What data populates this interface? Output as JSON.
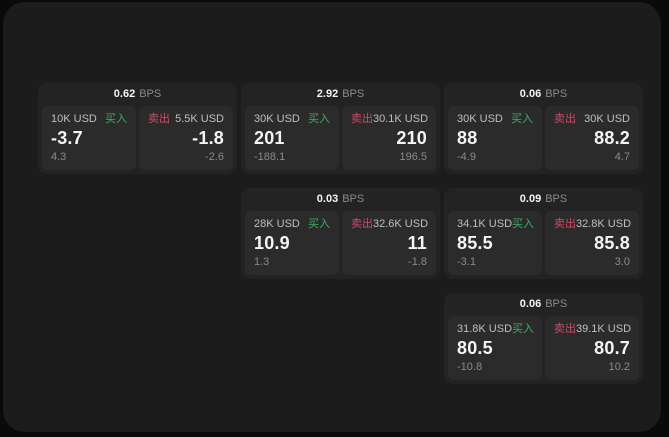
{
  "labels": {
    "bps_unit": "BPS",
    "buy": "买入",
    "sell": "卖出"
  },
  "colors": {
    "background": "#0a0a0a",
    "surface": "#1c1c1d",
    "card": "#232324",
    "panel": "#2b2b2c",
    "buy_green": "#3fae5e",
    "sell_red": "#cc4b68",
    "text_primary": "#f5f5f5",
    "text_secondary": "#bfbfbf",
    "text_muted": "#8a8a8a"
  },
  "cards": [
    {
      "row": 1,
      "col": 1,
      "bps": "0.62",
      "buy": {
        "size": "10K USD",
        "price": "-3.7",
        "delta": "4.3"
      },
      "sell": {
        "size": "5.5K USD",
        "price": "-1.8",
        "delta": "-2.6"
      }
    },
    {
      "row": 1,
      "col": 2,
      "bps": "2.92",
      "buy": {
        "size": "30K USD",
        "price": "201",
        "delta": "-188.1"
      },
      "sell": {
        "size": "30.1K USD",
        "price": "210",
        "delta": "196.5"
      }
    },
    {
      "row": 1,
      "col": 3,
      "bps": "0.06",
      "buy": {
        "size": "30K USD",
        "price": "88",
        "delta": "-4.9"
      },
      "sell": {
        "size": "30K USD",
        "price": "88.2",
        "delta": "4.7"
      }
    },
    {
      "row": 2,
      "col": 2,
      "bps": "0.03",
      "buy": {
        "size": "28K USD",
        "price": "10.9",
        "delta": "1.3"
      },
      "sell": {
        "size": "32.6K USD",
        "price": "11",
        "delta": "-1.8"
      }
    },
    {
      "row": 2,
      "col": 3,
      "bps": "0.09",
      "buy": {
        "size": "34.1K USD",
        "price": "85.5",
        "delta": "-3.1"
      },
      "sell": {
        "size": "32.8K USD",
        "price": "85.8",
        "delta": "3.0"
      }
    },
    {
      "row": 3,
      "col": 3,
      "bps": "0.06",
      "buy": {
        "size": "31.8K USD",
        "price": "80.5",
        "delta": "-10.8"
      },
      "sell": {
        "size": "39.1K USD",
        "price": "80.7",
        "delta": "10.2"
      }
    }
  ]
}
